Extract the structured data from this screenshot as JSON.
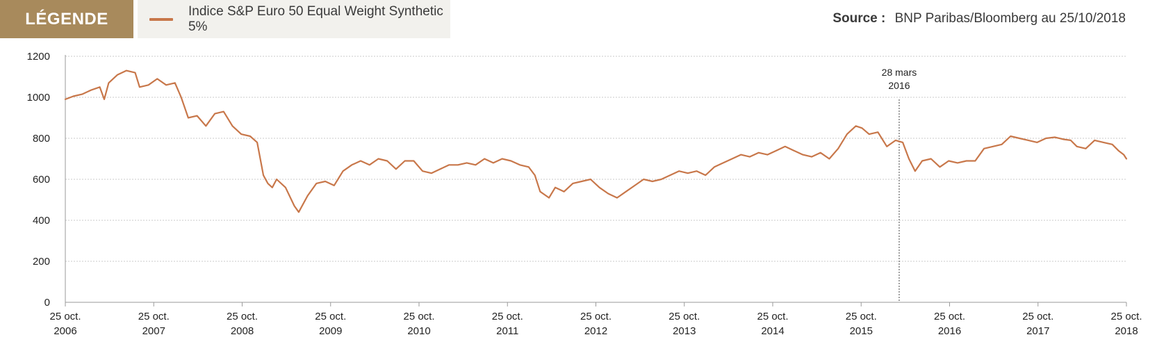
{
  "legend": {
    "tag_label": "LÉGENDE",
    "series_label": "Indice S&P Euro 50 Equal Weight Synthetic 5%"
  },
  "source": {
    "label": "Source :",
    "text": "BNP Paribas/Bloomberg au 25/10/2018"
  },
  "colors": {
    "accent": "#a88a5c",
    "series": "#c8774a",
    "legend_bg": "#f2f1ed",
    "grid": "#c8c8c8",
    "axis": "#9a9a9a"
  },
  "chart_data": {
    "type": "line",
    "title": "",
    "xlabel": "",
    "ylabel": "",
    "ylim": [
      0,
      1200
    ],
    "yticks": [
      0,
      200,
      400,
      600,
      800,
      1000,
      1200
    ],
    "xlim": [
      2006.81,
      2018.81
    ],
    "xticks": [
      {
        "x": 2006.81,
        "line1": "25 oct.",
        "line2": "2006"
      },
      {
        "x": 2007.81,
        "line1": "25 oct.",
        "line2": "2007"
      },
      {
        "x": 2008.81,
        "line1": "25 oct.",
        "line2": "2008"
      },
      {
        "x": 2009.81,
        "line1": "25 oct.",
        "line2": "2009"
      },
      {
        "x": 2010.81,
        "line1": "25 oct.",
        "line2": "2010"
      },
      {
        "x": 2011.81,
        "line1": "25 oct.",
        "line2": "2011"
      },
      {
        "x": 2012.81,
        "line1": "25 oct.",
        "line2": "2012"
      },
      {
        "x": 2013.81,
        "line1": "25 oct.",
        "line2": "2013"
      },
      {
        "x": 2014.81,
        "line1": "25 oct.",
        "line2": "2014"
      },
      {
        "x": 2015.81,
        "line1": "25 oct.",
        "line2": "2015"
      },
      {
        "x": 2016.81,
        "line1": "25 oct.",
        "line2": "2016"
      },
      {
        "x": 2017.81,
        "line1": "25 oct.",
        "line2": "2017"
      },
      {
        "x": 2018.81,
        "line1": "25 oct.",
        "line2": "2018"
      }
    ],
    "grid": true,
    "annotation": {
      "x": 2016.24,
      "line1": "28 mars",
      "line2": "2016"
    },
    "series": [
      {
        "name": "Indice S&P Euro 50 Equal Weight Synthetic 5%",
        "points": [
          [
            2006.81,
            990
          ],
          [
            2006.9,
            1005
          ],
          [
            2007.0,
            1015
          ],
          [
            2007.1,
            1035
          ],
          [
            2007.2,
            1050
          ],
          [
            2007.25,
            990
          ],
          [
            2007.3,
            1070
          ],
          [
            2007.4,
            1110
          ],
          [
            2007.5,
            1130
          ],
          [
            2007.6,
            1120
          ],
          [
            2007.65,
            1050
          ],
          [
            2007.75,
            1060
          ],
          [
            2007.85,
            1090
          ],
          [
            2007.95,
            1060
          ],
          [
            2008.05,
            1070
          ],
          [
            2008.12,
            1000
          ],
          [
            2008.2,
            900
          ],
          [
            2008.3,
            910
          ],
          [
            2008.4,
            860
          ],
          [
            2008.5,
            920
          ],
          [
            2008.6,
            930
          ],
          [
            2008.7,
            860
          ],
          [
            2008.8,
            820
          ],
          [
            2008.9,
            810
          ],
          [
            2008.98,
            780
          ],
          [
            2009.05,
            620
          ],
          [
            2009.1,
            580
          ],
          [
            2009.15,
            560
          ],
          [
            2009.2,
            600
          ],
          [
            2009.3,
            560
          ],
          [
            2009.4,
            470
          ],
          [
            2009.45,
            440
          ],
          [
            2009.55,
            520
          ],
          [
            2009.65,
            580
          ],
          [
            2009.75,
            590
          ],
          [
            2009.85,
            570
          ],
          [
            2009.95,
            640
          ],
          [
            2010.05,
            670
          ],
          [
            2010.15,
            690
          ],
          [
            2010.25,
            670
          ],
          [
            2010.35,
            700
          ],
          [
            2010.45,
            690
          ],
          [
            2010.55,
            650
          ],
          [
            2010.65,
            690
          ],
          [
            2010.75,
            690
          ],
          [
            2010.85,
            640
          ],
          [
            2010.95,
            630
          ],
          [
            2011.05,
            650
          ],
          [
            2011.15,
            670
          ],
          [
            2011.25,
            670
          ],
          [
            2011.35,
            680
          ],
          [
            2011.45,
            670
          ],
          [
            2011.55,
            700
          ],
          [
            2011.65,
            680
          ],
          [
            2011.75,
            700
          ],
          [
            2011.85,
            690
          ],
          [
            2011.95,
            670
          ],
          [
            2012.05,
            660
          ],
          [
            2012.12,
            620
          ],
          [
            2012.18,
            540
          ],
          [
            2012.28,
            510
          ],
          [
            2012.35,
            560
          ],
          [
            2012.45,
            540
          ],
          [
            2012.55,
            580
          ],
          [
            2012.65,
            590
          ],
          [
            2012.75,
            600
          ],
          [
            2012.85,
            560
          ],
          [
            2012.95,
            530
          ],
          [
            2013.05,
            510
          ],
          [
            2013.15,
            540
          ],
          [
            2013.25,
            570
          ],
          [
            2013.35,
            600
          ],
          [
            2013.45,
            590
          ],
          [
            2013.55,
            600
          ],
          [
            2013.65,
            620
          ],
          [
            2013.75,
            640
          ],
          [
            2013.85,
            630
          ],
          [
            2013.95,
            640
          ],
          [
            2014.05,
            620
          ],
          [
            2014.15,
            660
          ],
          [
            2014.25,
            680
          ],
          [
            2014.35,
            700
          ],
          [
            2014.45,
            720
          ],
          [
            2014.55,
            710
          ],
          [
            2014.65,
            730
          ],
          [
            2014.75,
            720
          ],
          [
            2014.85,
            740
          ],
          [
            2014.95,
            760
          ],
          [
            2015.05,
            740
          ],
          [
            2015.15,
            720
          ],
          [
            2015.25,
            710
          ],
          [
            2015.35,
            730
          ],
          [
            2015.45,
            700
          ],
          [
            2015.55,
            750
          ],
          [
            2015.65,
            820
          ],
          [
            2015.75,
            860
          ],
          [
            2015.82,
            850
          ],
          [
            2015.9,
            820
          ],
          [
            2016.0,
            830
          ],
          [
            2016.1,
            760
          ],
          [
            2016.2,
            790
          ],
          [
            2016.28,
            780
          ],
          [
            2016.35,
            700
          ],
          [
            2016.42,
            640
          ],
          [
            2016.5,
            690
          ],
          [
            2016.6,
            700
          ],
          [
            2016.7,
            660
          ],
          [
            2016.8,
            690
          ],
          [
            2016.9,
            680
          ],
          [
            2017.0,
            690
          ],
          [
            2017.1,
            690
          ],
          [
            2017.2,
            750
          ],
          [
            2017.3,
            760
          ],
          [
            2017.4,
            770
          ],
          [
            2017.5,
            810
          ],
          [
            2017.6,
            800
          ],
          [
            2017.7,
            790
          ],
          [
            2017.8,
            780
          ],
          [
            2017.9,
            800
          ],
          [
            2018.0,
            805
          ],
          [
            2018.1,
            795
          ],
          [
            2018.18,
            790
          ],
          [
            2018.25,
            760
          ],
          [
            2018.35,
            750
          ],
          [
            2018.45,
            790
          ],
          [
            2018.55,
            780
          ],
          [
            2018.65,
            770
          ],
          [
            2018.72,
            740
          ],
          [
            2018.78,
            720
          ],
          [
            2018.81,
            700
          ]
        ]
      }
    ]
  }
}
